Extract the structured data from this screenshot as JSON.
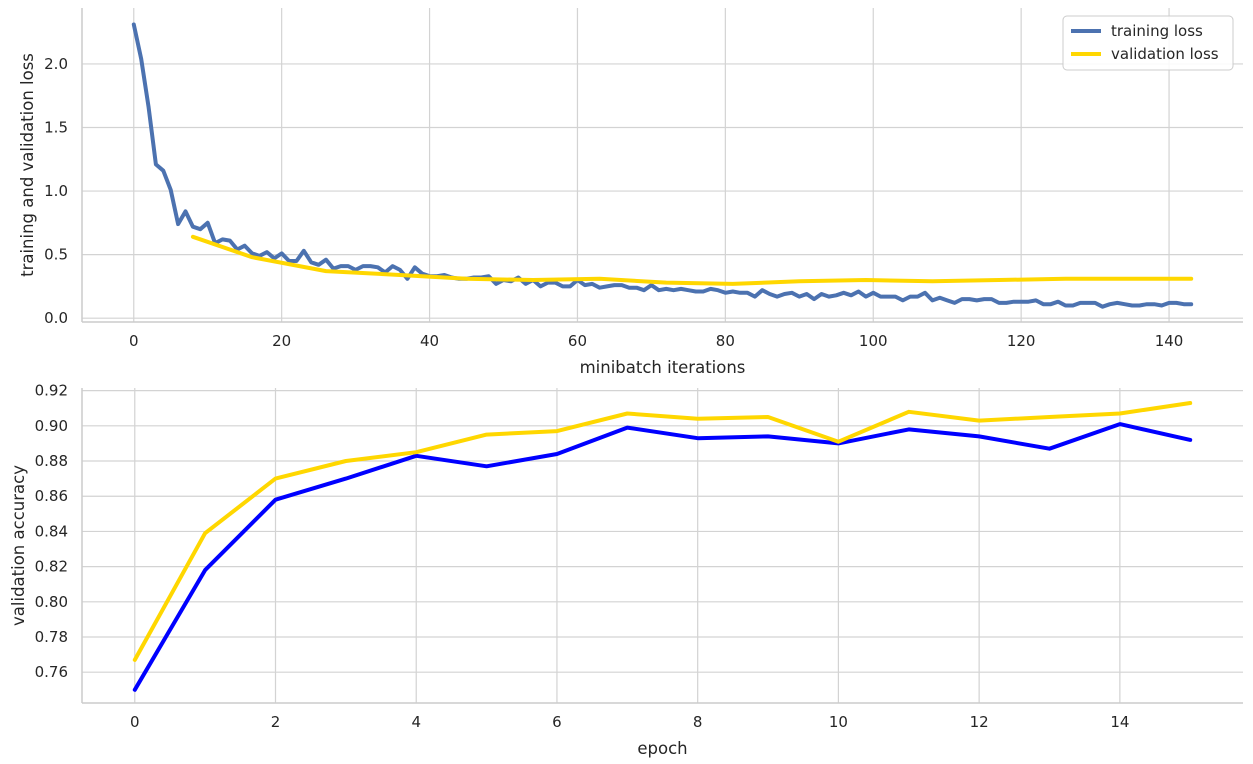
{
  "chart_data": [
    {
      "type": "line",
      "xlabel": "minibatch iterations",
      "ylabel": "training and validation loss",
      "xlim": [
        -7,
        150
      ],
      "ylim": [
        -0.03,
        2.44
      ],
      "xticks": [
        0,
        20,
        40,
        60,
        80,
        100,
        120,
        140
      ],
      "yticks": [
        0.0,
        0.5,
        1.0,
        1.5,
        2.0
      ],
      "xtick_labels": [
        "0",
        "20",
        "40",
        "60",
        "80",
        "100",
        "120",
        "140"
      ],
      "ytick_labels": [
        "0.0",
        "0.5",
        "1.0",
        "1.5",
        "2.0"
      ],
      "grid": true,
      "legend_position": "top-right",
      "series": [
        {
          "name": "training loss",
          "color": "#4c72b0",
          "x": [
            0,
            1,
            2,
            3,
            4,
            5,
            6,
            7,
            8,
            9,
            10,
            11,
            12,
            13,
            14,
            15,
            16,
            17,
            18,
            19,
            20,
            21,
            22,
            23,
            24,
            25,
            26,
            27,
            28,
            29,
            30,
            31,
            32,
            33,
            34,
            35,
            36,
            37,
            38,
            39,
            40,
            41,
            42,
            43,
            44,
            45,
            46,
            47,
            48,
            49,
            50,
            51,
            52,
            53,
            54,
            55,
            56,
            57,
            58,
            59,
            60,
            61,
            62,
            63,
            64,
            65,
            66,
            67,
            68,
            69,
            70,
            71,
            72,
            73,
            74,
            75,
            76,
            77,
            78,
            79,
            80,
            81,
            82,
            83,
            84,
            85,
            86,
            87,
            88,
            89,
            90,
            91,
            92,
            93,
            94,
            95,
            96,
            97,
            98,
            99,
            100,
            101,
            102,
            103,
            104,
            105,
            106,
            107,
            108,
            109,
            110,
            111,
            112,
            113,
            114,
            115,
            116,
            117,
            118,
            119,
            120,
            121,
            122,
            123,
            124,
            125,
            126,
            127,
            128,
            129,
            130,
            131,
            132,
            133,
            134,
            135,
            136,
            137,
            138,
            139,
            140,
            141,
            142,
            143
          ],
          "values": [
            2.31,
            2.04,
            1.66,
            1.21,
            1.16,
            1.01,
            0.74,
            0.84,
            0.72,
            0.7,
            0.75,
            0.59,
            0.62,
            0.61,
            0.54,
            0.57,
            0.51,
            0.49,
            0.52,
            0.47,
            0.51,
            0.45,
            0.45,
            0.53,
            0.44,
            0.42,
            0.46,
            0.39,
            0.41,
            0.41,
            0.38,
            0.41,
            0.41,
            0.4,
            0.36,
            0.41,
            0.38,
            0.31,
            0.4,
            0.35,
            0.33,
            0.33,
            0.34,
            0.32,
            0.31,
            0.31,
            0.32,
            0.32,
            0.33,
            0.27,
            0.3,
            0.29,
            0.32,
            0.27,
            0.3,
            0.25,
            0.28,
            0.28,
            0.25,
            0.25,
            0.3,
            0.26,
            0.27,
            0.24,
            0.25,
            0.26,
            0.26,
            0.24,
            0.24,
            0.22,
            0.26,
            0.22,
            0.23,
            0.22,
            0.23,
            0.22,
            0.21,
            0.21,
            0.23,
            0.22,
            0.2,
            0.21,
            0.2,
            0.2,
            0.17,
            0.22,
            0.19,
            0.17,
            0.19,
            0.2,
            0.17,
            0.19,
            0.15,
            0.19,
            0.17,
            0.18,
            0.2,
            0.18,
            0.21,
            0.17,
            0.2,
            0.17,
            0.17,
            0.17,
            0.14,
            0.17,
            0.17,
            0.2,
            0.14,
            0.16,
            0.14,
            0.12,
            0.15,
            0.15,
            0.14,
            0.15,
            0.15,
            0.12,
            0.12,
            0.13,
            0.13,
            0.13,
            0.14,
            0.11,
            0.11,
            0.13,
            0.1,
            0.1,
            0.12,
            0.12,
            0.12,
            0.09,
            0.11,
            0.12,
            0.11,
            0.1,
            0.1,
            0.11,
            0.11,
            0.1,
            0.12,
            0.12,
            0.11,
            0.11
          ]
        },
        {
          "name": "validation loss",
          "color": "#ffd700",
          "x": [
            8,
            16,
            26,
            36,
            45,
            54,
            63,
            72,
            81,
            90,
            99,
            108,
            117,
            126,
            134,
            143
          ],
          "values": [
            0.64,
            0.48,
            0.37,
            0.34,
            0.31,
            0.3,
            0.31,
            0.28,
            0.27,
            0.29,
            0.3,
            0.29,
            0.3,
            0.31,
            0.31,
            0.31
          ]
        }
      ]
    },
    {
      "type": "line",
      "xlabel": "epoch",
      "ylabel": "validation accuracy",
      "xlim": [
        -0.75,
        15.75
      ],
      "ylim": [
        0.7425,
        0.9215
      ],
      "xticks": [
        0,
        2,
        4,
        6,
        8,
        10,
        12,
        14
      ],
      "yticks": [
        0.76,
        0.78,
        0.8,
        0.82,
        0.84,
        0.86,
        0.88,
        0.9,
        0.92
      ],
      "xtick_labels": [
        "0",
        "2",
        "4",
        "6",
        "8",
        "10",
        "12",
        "14"
      ],
      "ytick_labels": [
        "0.76",
        "0.78",
        "0.80",
        "0.82",
        "0.84",
        "0.86",
        "0.88",
        "0.90",
        "0.92"
      ],
      "grid": true,
      "series": [
        {
          "color": "#0000ff",
          "x": [
            0,
            1,
            2,
            3,
            4,
            5,
            6,
            7,
            8,
            9,
            10,
            11,
            12,
            13,
            14,
            15
          ],
          "values": [
            0.75,
            0.818,
            0.858,
            0.87,
            0.883,
            0.877,
            0.884,
            0.899,
            0.893,
            0.894,
            0.89,
            0.898,
            0.894,
            0.887,
            0.901,
            0.892
          ]
        },
        {
          "color": "#ffd700",
          "x": [
            0,
            1,
            2,
            3,
            4,
            5,
            6,
            7,
            8,
            9,
            10,
            11,
            12,
            13,
            14,
            15
          ],
          "values": [
            0.767,
            0.839,
            0.87,
            0.88,
            0.885,
            0.895,
            0.897,
            0.907,
            0.904,
            0.905,
            0.891,
            0.908,
            0.903,
            0.905,
            0.907,
            0.913
          ]
        }
      ]
    }
  ]
}
